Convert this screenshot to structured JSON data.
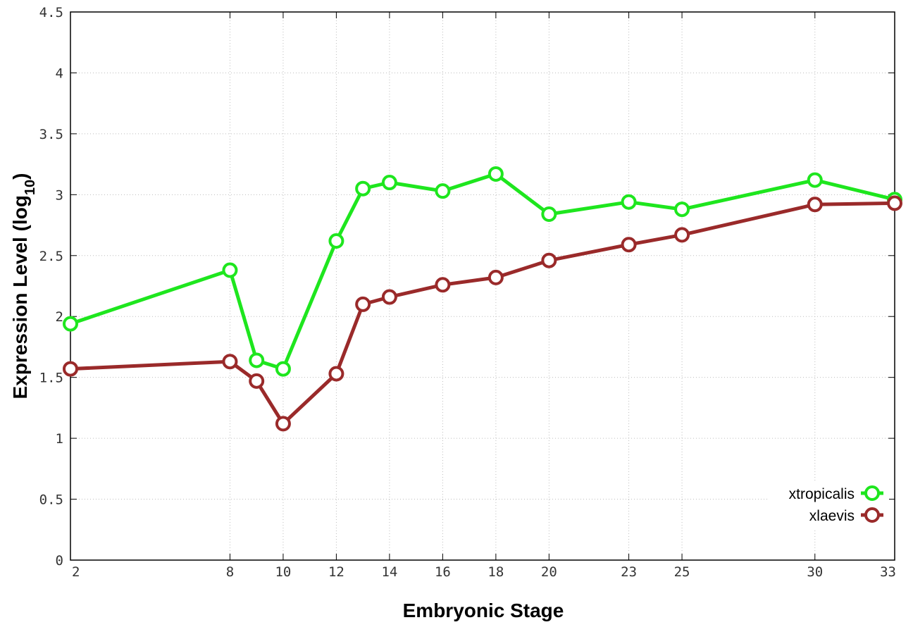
{
  "chart_data": {
    "type": "line",
    "xlabel": "Embryonic Stage",
    "ylabel_main": "Expression Level (log",
    "ylabel_sub": "10",
    "ylabel_close": ")",
    "xlim": [
      2,
      33
    ],
    "ylim": [
      0,
      4.5
    ],
    "x_ticks": [
      2,
      8,
      10,
      12,
      14,
      16,
      18,
      20,
      23,
      25,
      30,
      33
    ],
    "y_ticks": [
      0,
      0.5,
      1,
      1.5,
      2,
      2.5,
      3,
      3.5,
      4,
      4.5
    ],
    "y_tick_labels": [
      "0",
      "0.5",
      "1",
      "1.5",
      "2",
      "2.5",
      "3",
      "3.5",
      "4",
      "4.5"
    ],
    "grid": true,
    "legend_position": "bottom-right",
    "x": [
      2,
      8,
      9,
      10,
      12,
      13,
      14,
      16,
      18,
      20,
      23,
      25,
      30,
      33
    ],
    "series": [
      {
        "name": "xtropicalis",
        "color": "#1ee61e",
        "values": [
          1.94,
          2.38,
          1.64,
          1.57,
          2.62,
          3.05,
          3.1,
          3.03,
          3.17,
          2.84,
          2.94,
          2.88,
          3.12,
          2.96
        ]
      },
      {
        "name": "xlaevis",
        "color": "#9a2a2a",
        "values": [
          1.57,
          1.63,
          1.47,
          1.12,
          1.53,
          2.1,
          2.16,
          2.26,
          2.32,
          2.46,
          2.59,
          2.67,
          2.92,
          2.93
        ]
      }
    ]
  }
}
